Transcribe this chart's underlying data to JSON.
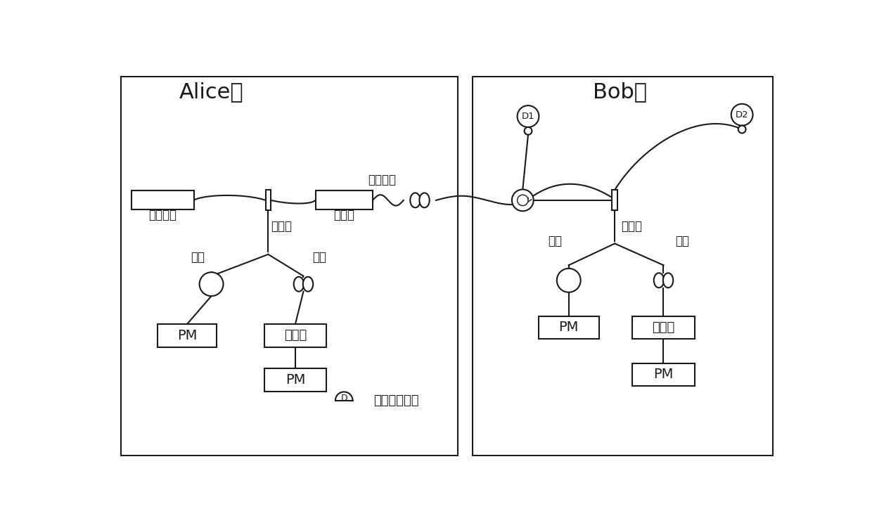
{
  "fig_width": 12.4,
  "fig_height": 7.44,
  "bg_color": "#ffffff",
  "line_color": "#1a1a1a",
  "alice_title": "Alice端",
  "bob_title": "Bob端",
  "label_quantum_source": "量子光源",
  "label_attenuator": "衰减器",
  "label_alice_bs": "分束器",
  "label_bob_bs": "分束器",
  "label_short_arm": "短臂",
  "label_long_arm": "长臂",
  "label_modulator": "调制器",
  "label_quantum_channel": "量子信道",
  "label_pm": "PM",
  "label_d1": "D1",
  "label_d2": "D2",
  "label_legend": "单光子探测器",
  "label_d_legend": "D"
}
